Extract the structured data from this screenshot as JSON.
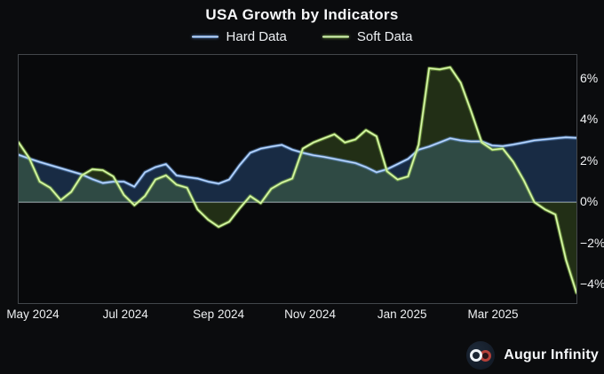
{
  "title": "USA Growth by Indicators",
  "legend": {
    "items": [
      {
        "label": "Hard Data",
        "color": "#7aa9e6"
      },
      {
        "label": "Soft Data",
        "color": "#a8dc66"
      }
    ]
  },
  "branding": {
    "name": "Augur Infinity",
    "icon": "infinity-icon"
  },
  "colors": {
    "background": "#0b0c0e",
    "plot_background": "#08090b",
    "plot_border": "#43474b",
    "zero_line": "#989da3",
    "text": "#f2f4f6",
    "hard_line": "#7aa9e6",
    "hard_core": "#d9e8fb",
    "hard_fill": "rgba(58,114,190,0.32)",
    "soft_line": "#a8dc66",
    "soft_core": "#ecf8d2",
    "soft_fill": "rgba(138,200,70,0.20)",
    "badge_background": "#161f2d",
    "badge_loop_left": "#eef2f6",
    "badge_loop_right": "#b5413a"
  },
  "chart_data": {
    "type": "line",
    "title": "USA Growth by Indicators",
    "xlabel": "",
    "ylabel": "",
    "ylim": [
      -4.9,
      7.15
    ],
    "grid": false,
    "zero_line": true,
    "fill": "to-zero",
    "legend_position": "top-center",
    "x": [
      "2024-04-21",
      "2024-04-28",
      "2024-05-05",
      "2024-05-12",
      "2024-05-19",
      "2024-05-26",
      "2024-06-02",
      "2024-06-09",
      "2024-06-16",
      "2024-06-23",
      "2024-06-30",
      "2024-07-07",
      "2024-07-14",
      "2024-07-21",
      "2024-07-28",
      "2024-08-04",
      "2024-08-11",
      "2024-08-18",
      "2024-08-25",
      "2024-09-01",
      "2024-09-08",
      "2024-09-15",
      "2024-09-22",
      "2024-09-29",
      "2024-10-06",
      "2024-10-13",
      "2024-10-20",
      "2024-10-27",
      "2024-11-03",
      "2024-11-10",
      "2024-11-17",
      "2024-11-24",
      "2024-12-01",
      "2024-12-08",
      "2024-12-15",
      "2024-12-22",
      "2024-12-29",
      "2025-01-05",
      "2025-01-12",
      "2025-01-19",
      "2025-01-26",
      "2025-02-02",
      "2025-02-09",
      "2025-02-16",
      "2025-02-23",
      "2025-03-02",
      "2025-03-09",
      "2025-03-16",
      "2025-03-23",
      "2025-03-30",
      "2025-04-06",
      "2025-04-13",
      "2025-04-20",
      "2025-04-22"
    ],
    "series": [
      {
        "name": "Hard Data",
        "color": "#7aa9e6",
        "values": [
          2.3,
          2.12,
          1.95,
          1.8,
          1.65,
          1.5,
          1.35,
          1.12,
          0.93,
          1.0,
          1.0,
          0.75,
          1.45,
          1.7,
          1.85,
          1.3,
          1.22,
          1.15,
          1.0,
          0.9,
          1.1,
          1.8,
          2.4,
          2.6,
          2.7,
          2.78,
          2.55,
          2.4,
          2.28,
          2.2,
          2.1,
          2.0,
          1.9,
          1.7,
          1.45,
          1.6,
          1.85,
          2.1,
          2.55,
          2.7,
          2.9,
          3.1,
          3.0,
          2.95,
          2.95,
          2.75,
          2.72,
          2.8,
          2.9,
          3.0,
          3.05,
          3.1,
          3.15,
          3.12
        ]
      },
      {
        "name": "Soft Data",
        "color": "#a8dc66",
        "values": [
          2.9,
          2.15,
          1.0,
          0.7,
          0.1,
          0.5,
          1.3,
          1.6,
          1.55,
          1.25,
          0.35,
          -0.15,
          0.3,
          1.1,
          1.3,
          0.85,
          0.7,
          -0.35,
          -0.85,
          -1.2,
          -0.95,
          -0.3,
          0.3,
          -0.05,
          0.65,
          0.95,
          1.15,
          2.6,
          2.9,
          3.1,
          3.3,
          2.9,
          3.05,
          3.5,
          3.2,
          1.5,
          1.1,
          1.25,
          2.8,
          6.5,
          6.45,
          6.55,
          5.8,
          4.4,
          2.9,
          2.55,
          2.6,
          1.95,
          1.05,
          0.0,
          -0.35,
          -0.6,
          -2.8,
          -4.4
        ]
      }
    ],
    "yticks": [
      {
        "label": "6%",
        "value": 6
      },
      {
        "label": "4%",
        "value": 4
      },
      {
        "label": "2%",
        "value": 2
      },
      {
        "label": "0%",
        "value": 0
      },
      {
        "label": "−2%",
        "value": -2
      },
      {
        "label": "−4%",
        "value": -4
      }
    ],
    "xticks": [
      {
        "label": "May 2024",
        "pos": 0.027
      },
      {
        "label": "Jul 2024",
        "pos": 0.193
      },
      {
        "label": "Sep 2024",
        "pos": 0.36
      },
      {
        "label": "Nov 2024",
        "pos": 0.524
      },
      {
        "label": "Jan 2025",
        "pos": 0.689
      },
      {
        "label": "Mar 2025",
        "pos": 0.852
      }
    ]
  }
}
